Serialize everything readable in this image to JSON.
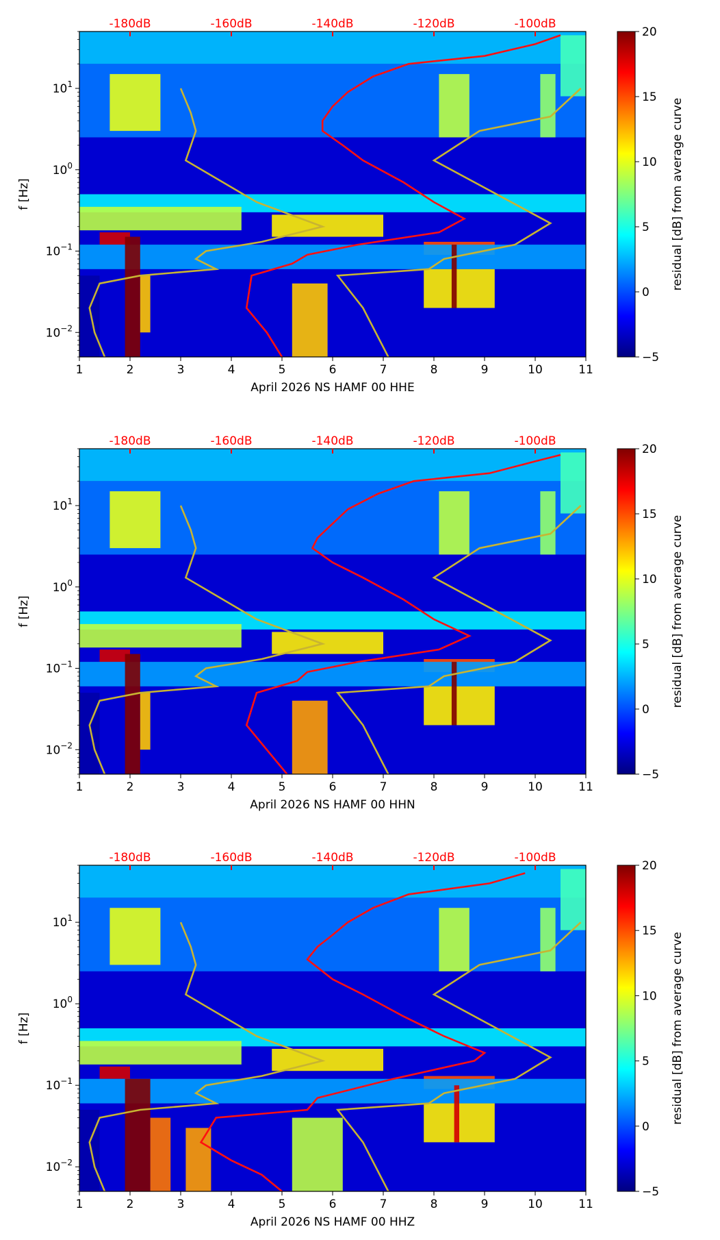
{
  "chart_data": [
    {
      "type": "heatmap",
      "xlabel": "April 2026 NS HAMF 00 HHE",
      "ylabel": "f [Hz]",
      "x_ticks": [
        "1",
        "2",
        "3",
        "4",
        "5",
        "6",
        "7",
        "8",
        "9",
        "10",
        "11"
      ],
      "xlim": [
        1,
        11
      ],
      "ylim_hz": [
        0.005,
        50
      ],
      "y_ticks": [
        {
          "exp": -2
        },
        {
          "exp": -1
        },
        {
          "exp": 0
        },
        {
          "exp": 1
        }
      ],
      "top_axis_labels": [
        "-180dB",
        "-160dB",
        "-140dB",
        "-120dB",
        "-100dB"
      ],
      "top_axis_color": "#ff0000",
      "colorbar": {
        "label": "residual [dB] from average curve",
        "min": -5,
        "max": 20,
        "ticks": [
          "−5",
          "0",
          "5",
          "10",
          "15",
          "20"
        ],
        "colormap": "jet"
      },
      "bands": [
        {
          "x0": 1.0,
          "x1": 11.0,
          "f0": 0.3,
          "f1": 0.5,
          "value": 4
        },
        {
          "x0": 1.0,
          "x1": 4.2,
          "f0": 0.18,
          "f1": 0.35,
          "value": 9
        },
        {
          "x0": 4.8,
          "x1": 7.0,
          "f0": 0.15,
          "f1": 0.28,
          "value": 11
        },
        {
          "x0": 1.4,
          "x1": 2.0,
          "f0": 0.12,
          "f1": 0.17,
          "value": 18
        },
        {
          "x0": 7.8,
          "x1": 9.2,
          "f0": 0.09,
          "f1": 0.13,
          "value": 15
        },
        {
          "x0": 1.0,
          "x1": 11.0,
          "f0": 0.06,
          "f1": 0.12,
          "value": 2
        },
        {
          "x0": 1.0,
          "x1": 11.0,
          "f0": 2.5,
          "f1": 20,
          "value": 1
        },
        {
          "x0": 1.0,
          "x1": 11.0,
          "f0": 20,
          "f1": 50,
          "value": 3
        },
        {
          "x0": 1.0,
          "x1": 1.4,
          "f0": 0.005,
          "f1": 0.05,
          "value": -4
        },
        {
          "x0": 1.9,
          "x1": 2.2,
          "f0": 0.005,
          "f1": 0.15,
          "value": 20
        },
        {
          "x0": 2.2,
          "x1": 2.4,
          "f0": 0.01,
          "f1": 0.05,
          "value": 12
        },
        {
          "x0": 5.2,
          "x1": 5.9,
          "f0": 0.005,
          "f1": 0.04,
          "value": 12
        },
        {
          "x0": 7.8,
          "x1": 9.2,
          "f0": 0.02,
          "f1": 0.06,
          "value": 11
        },
        {
          "x0": 8.35,
          "x1": 8.45,
          "f0": 0.02,
          "f1": 0.12,
          "value": 20
        },
        {
          "x0": 1.6,
          "x1": 2.6,
          "f0": 3,
          "f1": 15,
          "value": 10
        },
        {
          "x0": 8.1,
          "x1": 8.7,
          "f0": 2.5,
          "f1": 15,
          "value": 9
        },
        {
          "x0": 10.1,
          "x1": 10.4,
          "f0": 2.5,
          "f1": 15,
          "value": 8
        },
        {
          "x0": 10.5,
          "x1": 11.0,
          "f0": 8,
          "f1": 45,
          "value": 6
        }
      ],
      "red_curve": [
        [
          5.0,
          0.005
        ],
        [
          4.7,
          0.01
        ],
        [
          4.3,
          0.02
        ],
        [
          4.4,
          0.05
        ],
        [
          5.2,
          0.07
        ],
        [
          5.5,
          0.09
        ],
        [
          6.5,
          0.12
        ],
        [
          8.1,
          0.17
        ],
        [
          8.6,
          0.25
        ],
        [
          8.0,
          0.4
        ],
        [
          7.4,
          0.7
        ],
        [
          6.6,
          1.3
        ],
        [
          6.2,
          2.0
        ],
        [
          5.8,
          3.0
        ],
        [
          5.8,
          4.0
        ],
        [
          6.0,
          6.0
        ],
        [
          6.3,
          9.0
        ],
        [
          6.8,
          14
        ],
        [
          7.5,
          20
        ],
        [
          9.0,
          25
        ],
        [
          10.0,
          35
        ],
        [
          10.5,
          45
        ]
      ],
      "yellow_curves": [
        [
          [
            1.5,
            0.005
          ],
          [
            1.3,
            0.01
          ],
          [
            1.2,
            0.02
          ],
          [
            1.4,
            0.04
          ],
          [
            2.2,
            0.05
          ],
          [
            3.7,
            0.06
          ],
          [
            3.3,
            0.08
          ],
          [
            3.5,
            0.1
          ],
          [
            4.6,
            0.13
          ],
          [
            5.8,
            0.2
          ],
          [
            4.5,
            0.4
          ],
          [
            3.1,
            1.3
          ],
          [
            3.3,
            3.0
          ],
          [
            3.2,
            5.0
          ],
          [
            3.0,
            10
          ]
        ],
        [
          [
            7.1,
            0.005
          ],
          [
            6.6,
            0.02
          ],
          [
            6.1,
            0.05
          ],
          [
            7.9,
            0.06
          ],
          [
            8.2,
            0.08
          ],
          [
            9.6,
            0.12
          ],
          [
            10.3,
            0.22
          ],
          [
            8.0,
            1.3
          ],
          [
            8.9,
            3.0
          ],
          [
            10.3,
            4.5
          ],
          [
            10.9,
            10
          ]
        ]
      ]
    },
    {
      "type": "heatmap",
      "xlabel": "April 2026 NS HAMF 00 HHN",
      "ylabel": "f [Hz]",
      "x_ticks": [
        "1",
        "2",
        "3",
        "4",
        "5",
        "6",
        "7",
        "8",
        "9",
        "10",
        "11"
      ],
      "xlim": [
        1,
        11
      ],
      "ylim_hz": [
        0.005,
        50
      ],
      "y_ticks": [
        {
          "exp": -2
        },
        {
          "exp": -1
        },
        {
          "exp": 0
        },
        {
          "exp": 1
        }
      ],
      "top_axis_labels": [
        "-180dB",
        "-160dB",
        "-140dB",
        "-120dB",
        "-100dB"
      ],
      "top_axis_color": "#ff0000",
      "colorbar": {
        "label": "residual [dB] from average curve",
        "min": -5,
        "max": 20,
        "ticks": [
          "−5",
          "0",
          "5",
          "10",
          "15",
          "20"
        ],
        "colormap": "jet"
      },
      "bands": [
        {
          "x0": 1.0,
          "x1": 11.0,
          "f0": 0.3,
          "f1": 0.5,
          "value": 4
        },
        {
          "x0": 1.0,
          "x1": 4.2,
          "f0": 0.18,
          "f1": 0.35,
          "value": 9
        },
        {
          "x0": 4.8,
          "x1": 7.0,
          "f0": 0.15,
          "f1": 0.28,
          "value": 11
        },
        {
          "x0": 1.4,
          "x1": 2.0,
          "f0": 0.12,
          "f1": 0.17,
          "value": 18
        },
        {
          "x0": 7.8,
          "x1": 9.2,
          "f0": 0.09,
          "f1": 0.13,
          "value": 15
        },
        {
          "x0": 1.0,
          "x1": 11.0,
          "f0": 0.06,
          "f1": 0.12,
          "value": 2
        },
        {
          "x0": 1.0,
          "x1": 11.0,
          "f0": 2.5,
          "f1": 20,
          "value": 1
        },
        {
          "x0": 1.0,
          "x1": 11.0,
          "f0": 20,
          "f1": 50,
          "value": 3
        },
        {
          "x0": 1.0,
          "x1": 1.4,
          "f0": 0.005,
          "f1": 0.05,
          "value": -4
        },
        {
          "x0": 1.9,
          "x1": 2.2,
          "f0": 0.005,
          "f1": 0.15,
          "value": 20
        },
        {
          "x0": 2.2,
          "x1": 2.4,
          "f0": 0.01,
          "f1": 0.05,
          "value": 12
        },
        {
          "x0": 5.2,
          "x1": 5.9,
          "f0": 0.005,
          "f1": 0.04,
          "value": 13
        },
        {
          "x0": 7.8,
          "x1": 9.2,
          "f0": 0.02,
          "f1": 0.06,
          "value": 11
        },
        {
          "x0": 8.35,
          "x1": 8.45,
          "f0": 0.02,
          "f1": 0.12,
          "value": 20
        },
        {
          "x0": 1.6,
          "x1": 2.6,
          "f0": 3,
          "f1": 15,
          "value": 10
        },
        {
          "x0": 8.1,
          "x1": 8.7,
          "f0": 2.5,
          "f1": 15,
          "value": 9
        },
        {
          "x0": 10.1,
          "x1": 10.4,
          "f0": 2.5,
          "f1": 15,
          "value": 8
        },
        {
          "x0": 10.5,
          "x1": 11.0,
          "f0": 8,
          "f1": 45,
          "value": 6
        }
      ],
      "red_curve": [
        [
          5.1,
          0.005
        ],
        [
          4.7,
          0.01
        ],
        [
          4.3,
          0.02
        ],
        [
          4.5,
          0.05
        ],
        [
          5.3,
          0.07
        ],
        [
          5.5,
          0.09
        ],
        [
          6.5,
          0.12
        ],
        [
          8.1,
          0.17
        ],
        [
          8.7,
          0.25
        ],
        [
          8.0,
          0.4
        ],
        [
          7.4,
          0.7
        ],
        [
          6.6,
          1.3
        ],
        [
          6.0,
          2.0
        ],
        [
          5.6,
          3.0
        ],
        [
          5.7,
          4.0
        ],
        [
          6.0,
          6.0
        ],
        [
          6.3,
          9.0
        ],
        [
          6.9,
          14
        ],
        [
          7.6,
          20
        ],
        [
          9.1,
          25
        ],
        [
          10.0,
          35
        ],
        [
          10.5,
          42
        ]
      ],
      "yellow_curves": [
        [
          [
            1.5,
            0.005
          ],
          [
            1.3,
            0.01
          ],
          [
            1.2,
            0.02
          ],
          [
            1.4,
            0.04
          ],
          [
            2.2,
            0.05
          ],
          [
            3.7,
            0.06
          ],
          [
            3.3,
            0.08
          ],
          [
            3.5,
            0.1
          ],
          [
            4.6,
            0.13
          ],
          [
            5.8,
            0.2
          ],
          [
            4.5,
            0.4
          ],
          [
            3.1,
            1.3
          ],
          [
            3.3,
            3.0
          ],
          [
            3.2,
            5.0
          ],
          [
            3.0,
            10
          ]
        ],
        [
          [
            7.1,
            0.005
          ],
          [
            6.6,
            0.02
          ],
          [
            6.1,
            0.05
          ],
          [
            7.9,
            0.06
          ],
          [
            8.2,
            0.08
          ],
          [
            9.6,
            0.12
          ],
          [
            10.3,
            0.22
          ],
          [
            8.0,
            1.3
          ],
          [
            8.9,
            3.0
          ],
          [
            10.3,
            4.5
          ],
          [
            10.9,
            10
          ]
        ]
      ]
    },
    {
      "type": "heatmap",
      "xlabel": "April 2026 NS HAMF 00 HHZ",
      "ylabel": "f [Hz]",
      "x_ticks": [
        "1",
        "2",
        "3",
        "4",
        "5",
        "6",
        "7",
        "8",
        "9",
        "10",
        "11"
      ],
      "xlim": [
        1,
        11
      ],
      "ylim_hz": [
        0.005,
        50
      ],
      "y_ticks": [
        {
          "exp": -2
        },
        {
          "exp": -1
        },
        {
          "exp": 0
        },
        {
          "exp": 1
        }
      ],
      "top_axis_labels": [
        "-180dB",
        "-160dB",
        "-140dB",
        "-120dB",
        "-100dB"
      ],
      "top_axis_color": "#ff0000",
      "colorbar": {
        "label": "residual [dB] from average curve",
        "min": -5,
        "max": 20,
        "ticks": [
          "−5",
          "0",
          "5",
          "10",
          "15",
          "20"
        ],
        "colormap": "jet"
      },
      "bands": [
        {
          "x0": 1.0,
          "x1": 11.0,
          "f0": 0.3,
          "f1": 0.5,
          "value": 4
        },
        {
          "x0": 1.0,
          "x1": 4.2,
          "f0": 0.18,
          "f1": 0.35,
          "value": 9
        },
        {
          "x0": 4.8,
          "x1": 7.0,
          "f0": 0.15,
          "f1": 0.28,
          "value": 11
        },
        {
          "x0": 1.4,
          "x1": 2.0,
          "f0": 0.12,
          "f1": 0.17,
          "value": 18
        },
        {
          "x0": 7.8,
          "x1": 9.2,
          "f0": 0.09,
          "f1": 0.13,
          "value": 15
        },
        {
          "x0": 1.0,
          "x1": 11.0,
          "f0": 0.06,
          "f1": 0.12,
          "value": 2
        },
        {
          "x0": 1.0,
          "x1": 11.0,
          "f0": 2.5,
          "f1": 20,
          "value": 1
        },
        {
          "x0": 1.0,
          "x1": 11.0,
          "f0": 20,
          "f1": 50,
          "value": 3
        },
        {
          "x0": 1.0,
          "x1": 1.4,
          "f0": 0.005,
          "f1": 0.05,
          "value": -4
        },
        {
          "x0": 1.9,
          "x1": 2.4,
          "f0": 0.005,
          "f1": 0.12,
          "value": 20
        },
        {
          "x0": 2.4,
          "x1": 2.8,
          "f0": 0.005,
          "f1": 0.04,
          "value": 14
        },
        {
          "x0": 3.1,
          "x1": 3.6,
          "f0": 0.005,
          "f1": 0.03,
          "value": 13
        },
        {
          "x0": 5.2,
          "x1": 6.2,
          "f0": 0.005,
          "f1": 0.04,
          "value": 9
        },
        {
          "x0": 7.8,
          "x1": 9.2,
          "f0": 0.02,
          "f1": 0.06,
          "value": 11
        },
        {
          "x0": 8.4,
          "x1": 8.5,
          "f0": 0.02,
          "f1": 0.1,
          "value": 18
        },
        {
          "x0": 1.6,
          "x1": 2.6,
          "f0": 3,
          "f1": 15,
          "value": 10
        },
        {
          "x0": 8.1,
          "x1": 8.7,
          "f0": 2.5,
          "f1": 15,
          "value": 9
        },
        {
          "x0": 10.1,
          "x1": 10.4,
          "f0": 2.5,
          "f1": 15,
          "value": 8
        },
        {
          "x0": 10.5,
          "x1": 11.0,
          "f0": 8,
          "f1": 45,
          "value": 6
        }
      ],
      "red_curve": [
        [
          5.0,
          0.005
        ],
        [
          4.6,
          0.008
        ],
        [
          4.0,
          0.012
        ],
        [
          3.4,
          0.02
        ],
        [
          3.7,
          0.04
        ],
        [
          5.5,
          0.05
        ],
        [
          5.7,
          0.07
        ],
        [
          7.2,
          0.12
        ],
        [
          8.8,
          0.2
        ],
        [
          9.0,
          0.25
        ],
        [
          8.2,
          0.4
        ],
        [
          7.4,
          0.7
        ],
        [
          6.6,
          1.3
        ],
        [
          6.0,
          2.0
        ],
        [
          5.5,
          3.5
        ],
        [
          5.7,
          5.0
        ],
        [
          6.0,
          7.0
        ],
        [
          6.3,
          10
        ],
        [
          6.8,
          15
        ],
        [
          7.5,
          22
        ],
        [
          9.1,
          30
        ],
        [
          9.8,
          40
        ]
      ],
      "yellow_curves": [
        [
          [
            1.5,
            0.005
          ],
          [
            1.3,
            0.01
          ],
          [
            1.2,
            0.02
          ],
          [
            1.4,
            0.04
          ],
          [
            2.2,
            0.05
          ],
          [
            3.7,
            0.06
          ],
          [
            3.3,
            0.08
          ],
          [
            3.5,
            0.1
          ],
          [
            4.6,
            0.13
          ],
          [
            5.8,
            0.2
          ],
          [
            4.5,
            0.4
          ],
          [
            3.1,
            1.3
          ],
          [
            3.3,
            3.0
          ],
          [
            3.2,
            5.0
          ],
          [
            3.0,
            10
          ]
        ],
        [
          [
            7.1,
            0.005
          ],
          [
            6.6,
            0.02
          ],
          [
            6.1,
            0.05
          ],
          [
            7.9,
            0.06
          ],
          [
            8.2,
            0.08
          ],
          [
            9.6,
            0.12
          ],
          [
            10.3,
            0.22
          ],
          [
            8.0,
            1.3
          ],
          [
            8.9,
            3.0
          ],
          [
            10.3,
            4.5
          ],
          [
            10.9,
            10
          ]
        ]
      ]
    }
  ]
}
